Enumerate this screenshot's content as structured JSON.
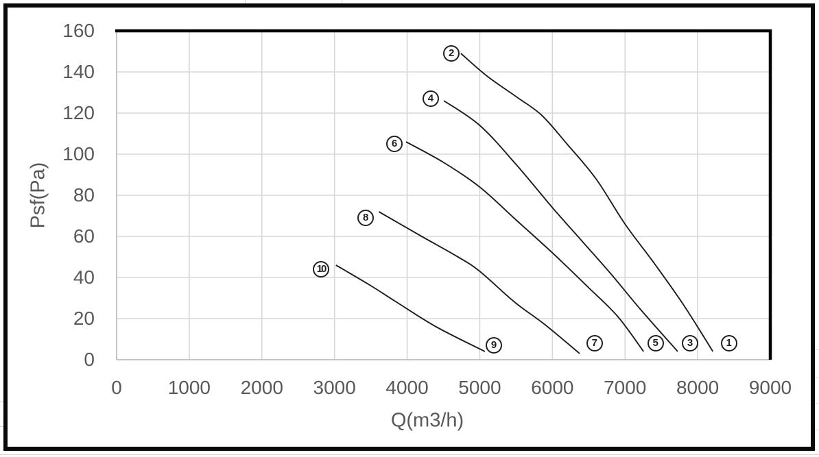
{
  "chart_data": {
    "type": "line",
    "title": "",
    "xlabel": "Q(m3/h)",
    "ylabel": "Psf(Pa)",
    "xlim": [
      0,
      9000
    ],
    "ylim": [
      0,
      160
    ],
    "x_ticks": [
      0,
      1000,
      2000,
      3000,
      4000,
      5000,
      6000,
      7000,
      8000,
      9000
    ],
    "y_ticks": [
      0,
      20,
      40,
      60,
      80,
      100,
      120,
      140,
      160
    ],
    "grid": true,
    "legend_position": "none",
    "series": [
      {
        "name": "curve-2-to-1",
        "start_label": "2",
        "end_label": "1",
        "points": [
          [
            4740,
            149
          ],
          [
            5100,
            138
          ],
          [
            5500,
            128
          ],
          [
            5850,
            119
          ],
          [
            6200,
            105
          ],
          [
            6600,
            88
          ],
          [
            7000,
            66
          ],
          [
            7400,
            47
          ],
          [
            7800,
            27
          ],
          [
            8210,
            4
          ]
        ]
      },
      {
        "name": "curve-4-to-3",
        "start_label": "4",
        "end_label": "3",
        "points": [
          [
            4505,
            126
          ],
          [
            5000,
            114
          ],
          [
            5500,
            95
          ],
          [
            6000,
            74
          ],
          [
            6400,
            58
          ],
          [
            6800,
            42
          ],
          [
            7200,
            25
          ],
          [
            7725,
            4
          ]
        ]
      },
      {
        "name": "curve-6-to-5",
        "start_label": "6",
        "end_label": "5",
        "points": [
          [
            3985,
            106
          ],
          [
            4500,
            96
          ],
          [
            5000,
            84
          ],
          [
            5500,
            68
          ],
          [
            6000,
            52
          ],
          [
            6500,
            35
          ],
          [
            6900,
            21
          ],
          [
            7255,
            4
          ]
        ]
      },
      {
        "name": "curve-8-to-7",
        "start_label": "8",
        "end_label": "7",
        "points": [
          [
            3610,
            72
          ],
          [
            4200,
            60
          ],
          [
            4700,
            50
          ],
          [
            5000,
            43
          ],
          [
            5480,
            28
          ],
          [
            5900,
            17
          ],
          [
            6375,
            3
          ]
        ]
      },
      {
        "name": "curve-10-to-9",
        "start_label": "10",
        "end_label": "9",
        "points": [
          [
            3020,
            46
          ],
          [
            3500,
            36
          ],
          [
            3855,
            28
          ],
          [
            4400,
            16
          ],
          [
            5070,
            4
          ]
        ]
      }
    ],
    "curve_labels": [
      {
        "text": "2",
        "q": 4610,
        "p": 149
      },
      {
        "text": "1",
        "q": 8430,
        "p": 8
      },
      {
        "text": "4",
        "q": 4325,
        "p": 127
      },
      {
        "text": "3",
        "q": 7895,
        "p": 8
      },
      {
        "text": "6",
        "q": 3825,
        "p": 105
      },
      {
        "text": "5",
        "q": 7420,
        "p": 8
      },
      {
        "text": "8",
        "q": 3430,
        "p": 69
      },
      {
        "text": "7",
        "q": 6580,
        "p": 8
      },
      {
        "text": "10",
        "q": 2815,
        "p": 44
      },
      {
        "text": "9",
        "q": 5195,
        "p": 7
      }
    ],
    "colors": {
      "curve": "#1c1c1c",
      "grid": "#d7d7d7",
      "axis_line": "#c3c3c3",
      "plot_border": "#000000",
      "axis_text": "#595959",
      "background": "#ffffff"
    }
  }
}
